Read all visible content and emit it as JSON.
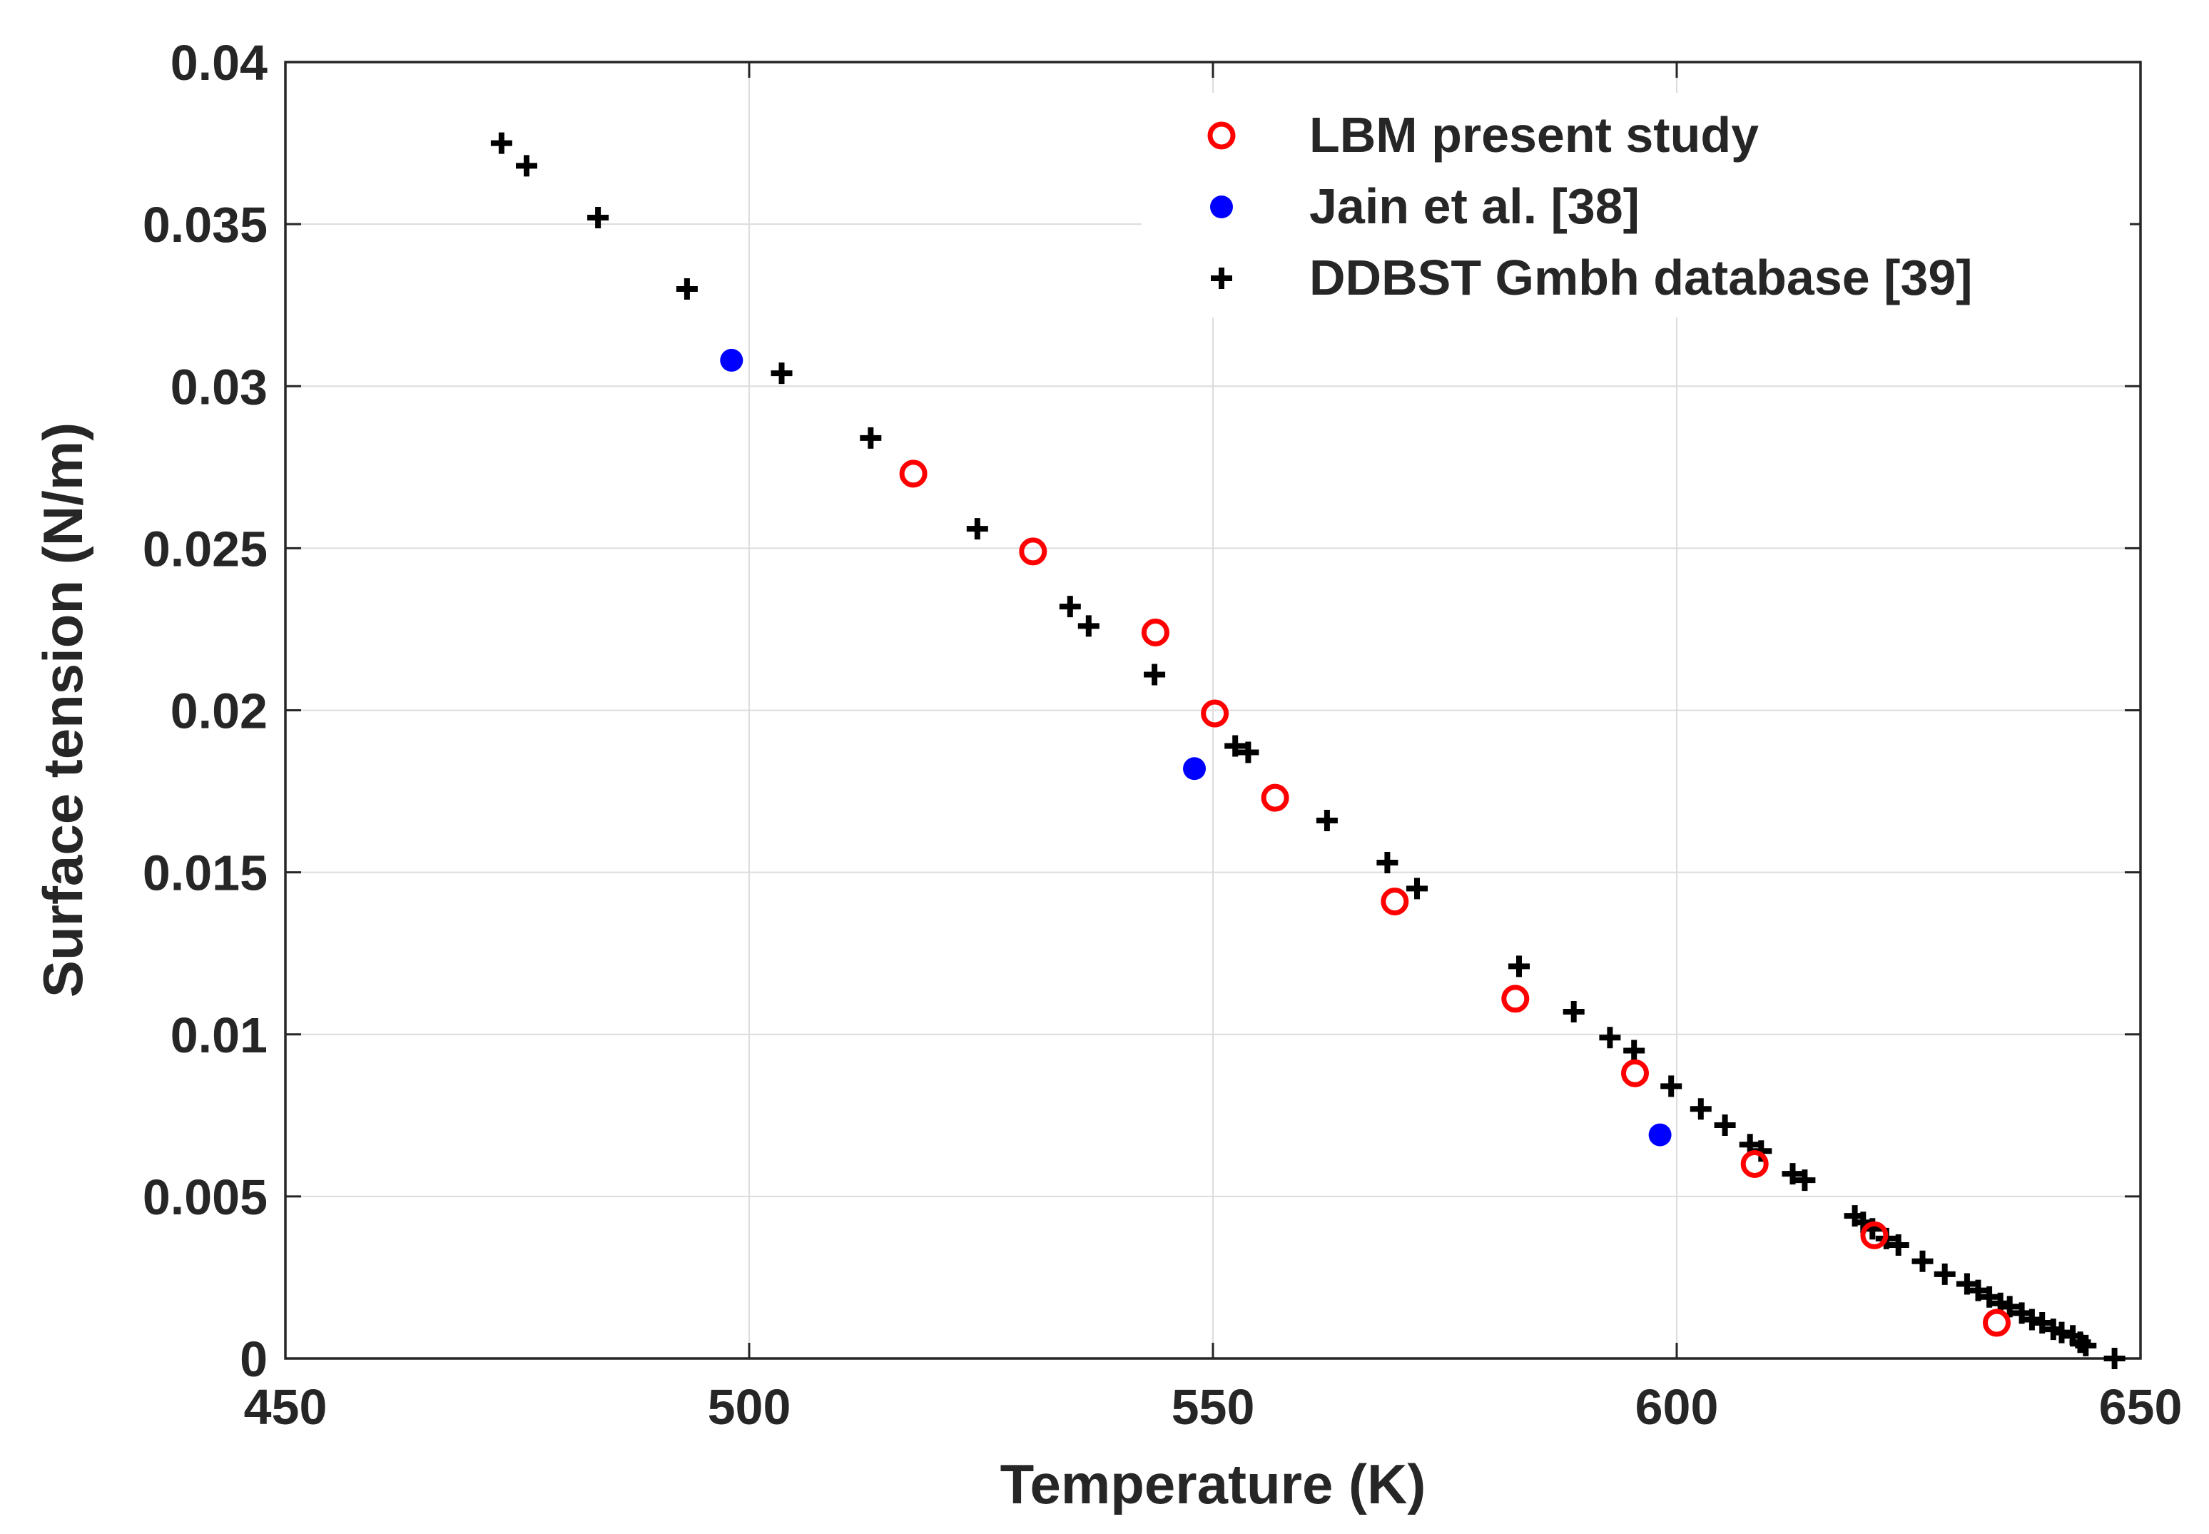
{
  "chart_data": {
    "type": "scatter",
    "title": "",
    "xlabel": "Temperature (K)",
    "ylabel": "Surface tension (N/m)",
    "xlim": [
      450,
      650
    ],
    "ylim": [
      0,
      0.04
    ],
    "xticks": [
      450,
      500,
      550,
      600,
      650
    ],
    "xtick_labels": [
      "450",
      "500",
      "550",
      "600",
      "650"
    ],
    "yticks": [
      0,
      0.005,
      0.01,
      0.015,
      0.02,
      0.025,
      0.03,
      0.035,
      0.04
    ],
    "ytick_labels": [
      "0",
      "0.005",
      "0.01",
      "0.015",
      "0.02",
      "0.025",
      "0.03",
      "0.035",
      "0.04"
    ],
    "grid": true,
    "legend_position": "top-right",
    "series": [
      {
        "name": "LBM present study",
        "marker": "open-circle",
        "color": "#ff0000",
        "x": [
          517.7,
          530.6,
          543.8,
          550.2,
          556.7,
          569.6,
          582.6,
          595.5,
          608.4,
          621.3,
          634.5
        ],
        "y": [
          0.0273,
          0.0249,
          0.0224,
          0.0199,
          0.0173,
          0.0141,
          0.0111,
          0.0088,
          0.006,
          0.0038,
          0.0011
        ]
      },
      {
        "name": "Jain et al. [38]",
        "marker": "filled-circle",
        "color": "#0000ff",
        "x": [
          498.1,
          548.0,
          598.2
        ],
        "y": [
          0.0308,
          0.0182,
          0.0069
        ]
      },
      {
        "name": "DDBST Gmbh database [39]",
        "marker": "plus",
        "color": "#000000",
        "x": [
          473.3,
          476.0,
          483.7,
          493.3,
          503.5,
          513.1,
          524.6,
          534.6,
          536.6,
          543.7,
          552.4,
          553.8,
          562.3,
          568.8,
          572.0,
          583.0,
          588.9,
          592.8,
          595.4,
          599.4,
          602.6,
          605.2,
          607.9,
          609.1,
          612.5,
          613.8,
          619.2,
          620.1,
          621.1,
          622.6,
          623.9,
          626.5,
          628.9,
          631.3,
          632.5,
          633.7,
          634.9,
          635.9,
          637.2,
          638.3,
          639.4,
          640.6,
          641.5,
          642.7,
          643.5,
          644.1,
          647.2
        ],
        "y": [
          0.0375,
          0.0368,
          0.0352,
          0.033,
          0.0304,
          0.0284,
          0.0256,
          0.0232,
          0.0226,
          0.0211,
          0.0189,
          0.0187,
          0.0166,
          0.0153,
          0.0145,
          0.0121,
          0.0107,
          0.0099,
          0.0095,
          0.0084,
          0.0077,
          0.0072,
          0.0066,
          0.0064,
          0.0057,
          0.0055,
          0.0044,
          0.0042,
          0.004,
          0.0037,
          0.0035,
          0.003,
          0.0026,
          0.0023,
          0.0021,
          0.0019,
          0.0017,
          0.0016,
          0.0014,
          0.0012,
          0.0011,
          0.0009,
          0.0008,
          0.0007,
          0.0005,
          0.0004,
          0.0
        ]
      }
    ]
  }
}
